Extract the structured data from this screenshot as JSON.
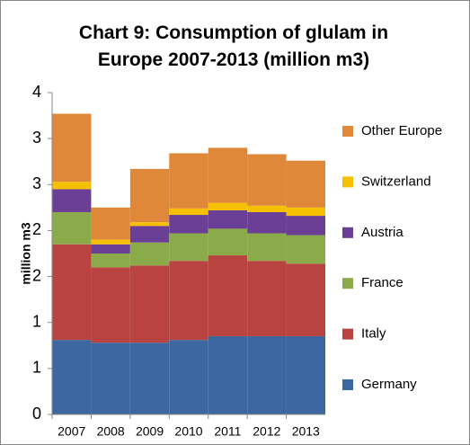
{
  "chart_data": {
    "type": "stacked_bar",
    "title": "Chart 9: Consumption of glulam in Europe 2007-2013 (million m3)",
    "y_label": "million m3",
    "categories": [
      "2007",
      "2008",
      "2009",
      "2010",
      "2011",
      "2012",
      "2013"
    ],
    "series": [
      {
        "name": "Germany",
        "color": "#3c67a0",
        "values": [
          0.81,
          0.78,
          0.78,
          0.81,
          0.85,
          0.85,
          0.85
        ]
      },
      {
        "name": "Italy",
        "color": "#b84340",
        "values": [
          1.04,
          0.82,
          0.84,
          0.86,
          0.88,
          0.82,
          0.79
        ]
      },
      {
        "name": "France",
        "color": "#8bab4a",
        "values": [
          0.35,
          0.15,
          0.25,
          0.3,
          0.29,
          0.3,
          0.31
        ]
      },
      {
        "name": "Austria",
        "color": "#6c3f96",
        "values": [
          0.25,
          0.1,
          0.18,
          0.2,
          0.2,
          0.23,
          0.21
        ]
      },
      {
        "name": "Switzerland",
        "color": "#f5c000",
        "values": [
          0.08,
          0.05,
          0.04,
          0.07,
          0.08,
          0.07,
          0.09
        ]
      },
      {
        "name": "Other Europe",
        "color": "#e0883a",
        "values": [
          0.74,
          0.35,
          0.58,
          0.6,
          0.6,
          0.56,
          0.51
        ]
      }
    ],
    "ylim": [
      0,
      3.5
    ],
    "yticks": [
      0,
      {
        "value": 0.5,
        "label": "1"
      },
      1,
      {
        "value": 1.5,
        "label": "2"
      },
      2,
      {
        "value": 2.5,
        "label": "3"
      },
      3,
      {
        "value": 3.5,
        "label": "4"
      }
    ],
    "legend": "right"
  }
}
